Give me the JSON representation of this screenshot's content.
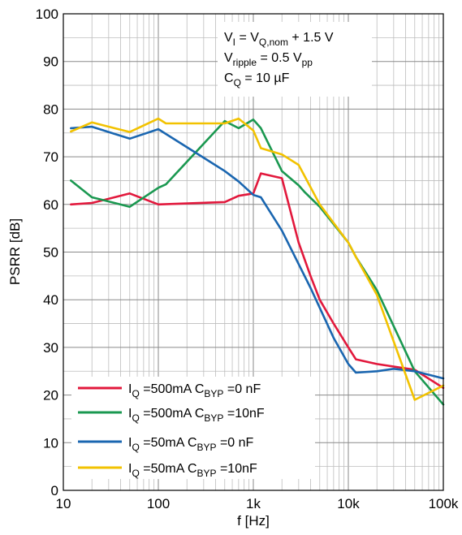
{
  "chart_data": {
    "type": "line",
    "x_scale": "log",
    "xlabel": "f [Hz]",
    "ylabel": "PSRR [dB]",
    "xlim": [
      10,
      100000
    ],
    "ylim": [
      0,
      100
    ],
    "grid": true,
    "x_tick_labels": [
      "10",
      "100",
      "1k",
      "10k",
      "100k"
    ],
    "y_ticks": [
      0,
      10,
      20,
      30,
      40,
      50,
      60,
      70,
      80,
      90,
      100
    ],
    "legend_position": "bottom-left",
    "conditions": {
      "line1": {
        "a": "V",
        "a_sub": "I",
        "b": " = V",
        "b_sub": "Q,nom",
        "c": " + 1.5 V"
      },
      "line2": {
        "a": "V",
        "a_sub": "ripple",
        "b": " = 0.5 V",
        "b_sub": "pp"
      },
      "line3": {
        "a": "C",
        "a_sub": "Q",
        "b": " = 10 µF"
      }
    },
    "series": [
      {
        "name": "I_Q =500mA C_BYP =0 nF",
        "label_parts": {
          "i": "I",
          "i_sub": "Q",
          "mid": " =500mA C",
          "c_sub": "BYP",
          "end": " =0 nF"
        },
        "color": "#e2183c",
        "x": [
          12,
          20,
          50,
          100,
          500,
          700,
          1000,
          1200,
          2000,
          3000,
          4000,
          5000,
          7000,
          10000,
          12000,
          20000,
          50000,
          100000
        ],
        "y": [
          60,
          60.3,
          62.3,
          60,
          60.5,
          61.8,
          62.3,
          66.5,
          65.5,
          52,
          45,
          40,
          35,
          30,
          27.5,
          26.5,
          25.3,
          21.5
        ]
      },
      {
        "name": "I_Q =500mA C_BYP =10nF",
        "label_parts": {
          "i": "I",
          "i_sub": "Q",
          "mid": " =500mA C",
          "c_sub": "BYP",
          "end": " =10nF"
        },
        "color": "#1a9850",
        "x": [
          12,
          20,
          50,
          100,
          120,
          500,
          700,
          1000,
          1200,
          2000,
          3000,
          3500,
          5000,
          10000,
          12000,
          20000,
          50000,
          100000
        ],
        "y": [
          65,
          61.5,
          59.5,
          63.5,
          64.2,
          77.5,
          76,
          77.8,
          76,
          67,
          64,
          62.5,
          59.5,
          52,
          49,
          42,
          25,
          18
        ]
      },
      {
        "name": "I_Q =50mA C_BYP =0 nF",
        "label_parts": {
          "i": "I",
          "i_sub": "Q",
          "mid": " =50mA C",
          "c_sub": "BYP",
          "end": " =0 nF"
        },
        "color": "#1a66b0",
        "x": [
          12,
          20,
          50,
          100,
          500,
          700,
          1000,
          1200,
          2000,
          4000,
          7000,
          10000,
          12000,
          20000,
          30000,
          50000,
          100000
        ],
        "y": [
          76,
          76.3,
          73.8,
          75.8,
          67,
          64.8,
          62,
          61.5,
          54.5,
          42.5,
          32,
          26.5,
          24.7,
          25,
          25.5,
          25,
          23.5
        ]
      },
      {
        "name": "I_Q =50mA C_BYP =10nF",
        "label_parts": {
          "i": "I",
          "i_sub": "Q",
          "mid": " =50mA C",
          "c_sub": "BYP",
          "end": " =10nF"
        },
        "color": "#f2c200",
        "x": [
          12,
          20,
          50,
          100,
          120,
          500,
          700,
          1000,
          1200,
          2000,
          3000,
          5000,
          10000,
          12000,
          20000,
          50000,
          100000
        ],
        "y": [
          75.3,
          77.2,
          75.2,
          78,
          77,
          77,
          78,
          75.5,
          71.8,
          70.5,
          68.3,
          60,
          52,
          49,
          41,
          19,
          22
        ]
      }
    ]
  }
}
